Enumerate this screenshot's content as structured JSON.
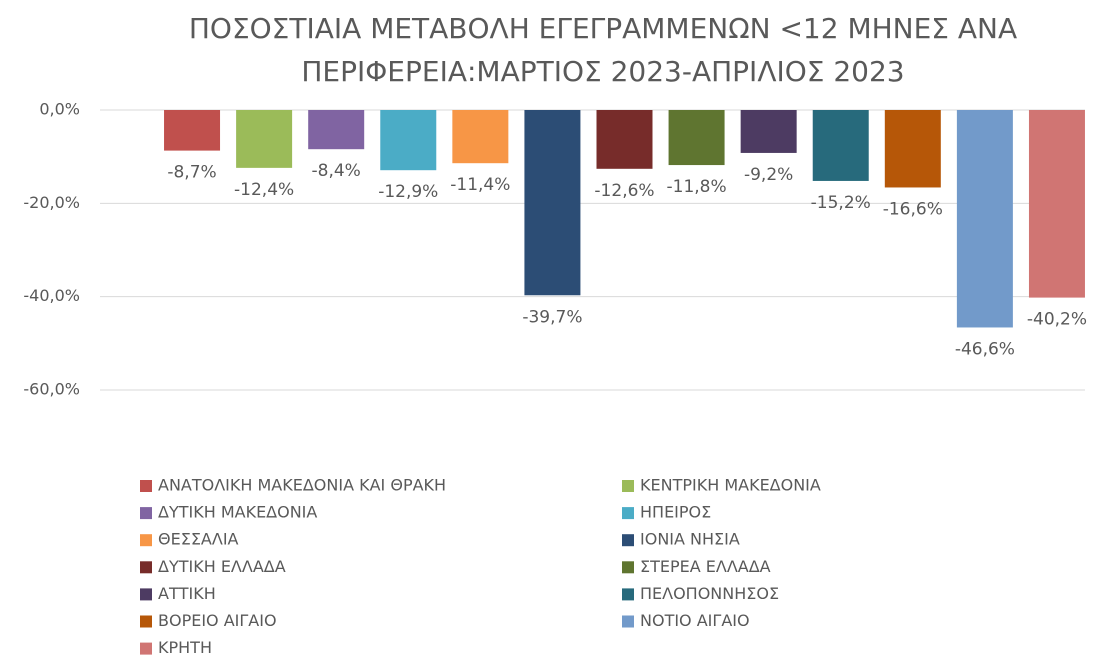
{
  "chart_data": {
    "type": "bar",
    "title": [
      "ΠΟΣΟΣΤΙΑΙΑ ΜΕΤΑΒΟΛΗ ΕΓΕΓΡΑΜΜΕΝΩΝ <12 ΜΗΝΕΣ ΑΝΑ",
      "ΠΕΡΙΦΕΡΕΙΑ:ΜΑΡΤΙΟΣ 2023-ΑΠΡΙΛΙΟΣ 2023"
    ],
    "series": [
      {
        "name": "ΑΝΑΤΟΛΙΚΗ ΜΑΚΕΔΟΝΙΑ ΚΑΙ ΘΡΑΚΗ",
        "color": "#c0504d",
        "values": [
          -8.7
        ],
        "value_labels": [
          "-8,7%"
        ]
      },
      {
        "name": "ΚΕΝΤΡΙΚΗ ΜΑΚΕΔΟΝΙΑ",
        "color": "#9bbb59",
        "values": [
          -12.4
        ],
        "value_labels": [
          "-12,4%"
        ]
      },
      {
        "name": "ΔΥΤΙΚΗ ΜΑΚΕΔΟΝΙΑ",
        "color": "#8064a2",
        "values": [
          -8.4
        ],
        "value_labels": [
          "-8,4%"
        ]
      },
      {
        "name": "ΗΠΕΙΡΟΣ",
        "color": "#4bacc6",
        "values": [
          -12.9
        ],
        "value_labels": [
          "-12,9%"
        ]
      },
      {
        "name": "ΘΕΣΣΑΛΙΑ",
        "color": "#f79646",
        "values": [
          -11.4
        ],
        "value_labels": [
          "-11,4%"
        ]
      },
      {
        "name": "ΙΟΝΙΑ ΝΗΣΙΑ",
        "color": "#2c4d75",
        "values": [
          -39.7
        ],
        "value_labels": [
          "-39,7%"
        ]
      },
      {
        "name": "ΔΥΤΙΚΗ ΕΛΛΑΔΑ",
        "color": "#772c2a",
        "values": [
          -12.6
        ],
        "value_labels": [
          "-12,6%"
        ]
      },
      {
        "name": "ΣΤΕΡΕΑ ΕΛΛΑΔΑ",
        "color": "#5f7530",
        "values": [
          -11.8
        ],
        "value_labels": [
          "-11,8%"
        ]
      },
      {
        "name": "ΑΤΤΙΚΗ",
        "color": "#4d3b62",
        "values": [
          -9.2
        ],
        "value_labels": [
          "-9,2%"
        ]
      },
      {
        "name": "ΠΕΛΟΠΟΝΝΗΣΟΣ",
        "color": "#276a7c",
        "values": [
          -15.2
        ],
        "value_labels": [
          "-15,2%"
        ]
      },
      {
        "name": "ΒΟΡΕΙΟ ΑΙΓΑΙΟ",
        "color": "#b65708",
        "values": [
          -16.6
        ],
        "value_labels": [
          "-16,6%"
        ]
      },
      {
        "name": "ΝΟΤΙΟ ΑΙΓΑΙΟ",
        "color": "#729aca",
        "values": [
          -46.6
        ],
        "value_labels": [
          "-46,6%"
        ]
      },
      {
        "name": "ΚΡΗΤΗ",
        "color": "#d07573",
        "values": [
          -40.2
        ],
        "value_labels": [
          "-40,2%"
        ]
      }
    ],
    "ylim": [
      -60,
      0
    ],
    "yticks": [
      {
        "value": 0,
        "label": "0,0%"
      },
      {
        "value": -20,
        "label": "-20,0%"
      },
      {
        "value": -40,
        "label": "-40,0%"
      },
      {
        "value": -60,
        "label": "-60,0%"
      }
    ],
    "grid": true
  }
}
